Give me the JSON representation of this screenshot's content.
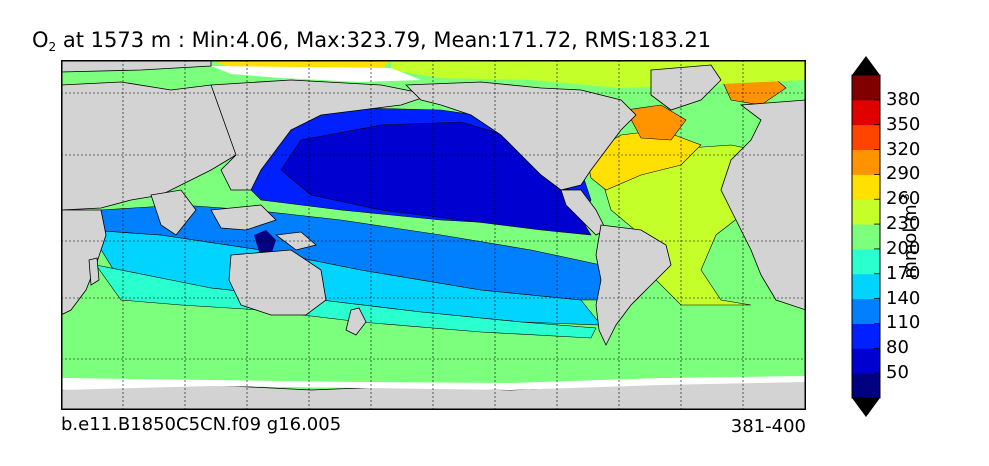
{
  "title": {
    "species": "O",
    "subscript": "2",
    "text": "at 1573 m : Min:4.06, Max:323.79, Mean:171.72, RMS:183.21"
  },
  "footer": {
    "case_name": "b.e11.B1850C5CN.f09 g16.005",
    "years": "381-400"
  },
  "colorbar": {
    "units_base": "mmol m",
    "units_exp": "-3",
    "ticks": [
      "50",
      "80",
      "110",
      "140",
      "170",
      "200",
      "230",
      "260",
      "290",
      "320",
      "350",
      "380"
    ],
    "colors": [
      "#000080",
      "#0000d0",
      "#0020ff",
      "#0080ff",
      "#00d4ff",
      "#2affd0",
      "#7cff7c",
      "#c4ff2a",
      "#ffe000",
      "#ff9400",
      "#ff4400",
      "#e00000",
      "#800000"
    ]
  },
  "map": {
    "land_color": "#d3d3d3",
    "missing_color": "#ffffff"
  }
}
